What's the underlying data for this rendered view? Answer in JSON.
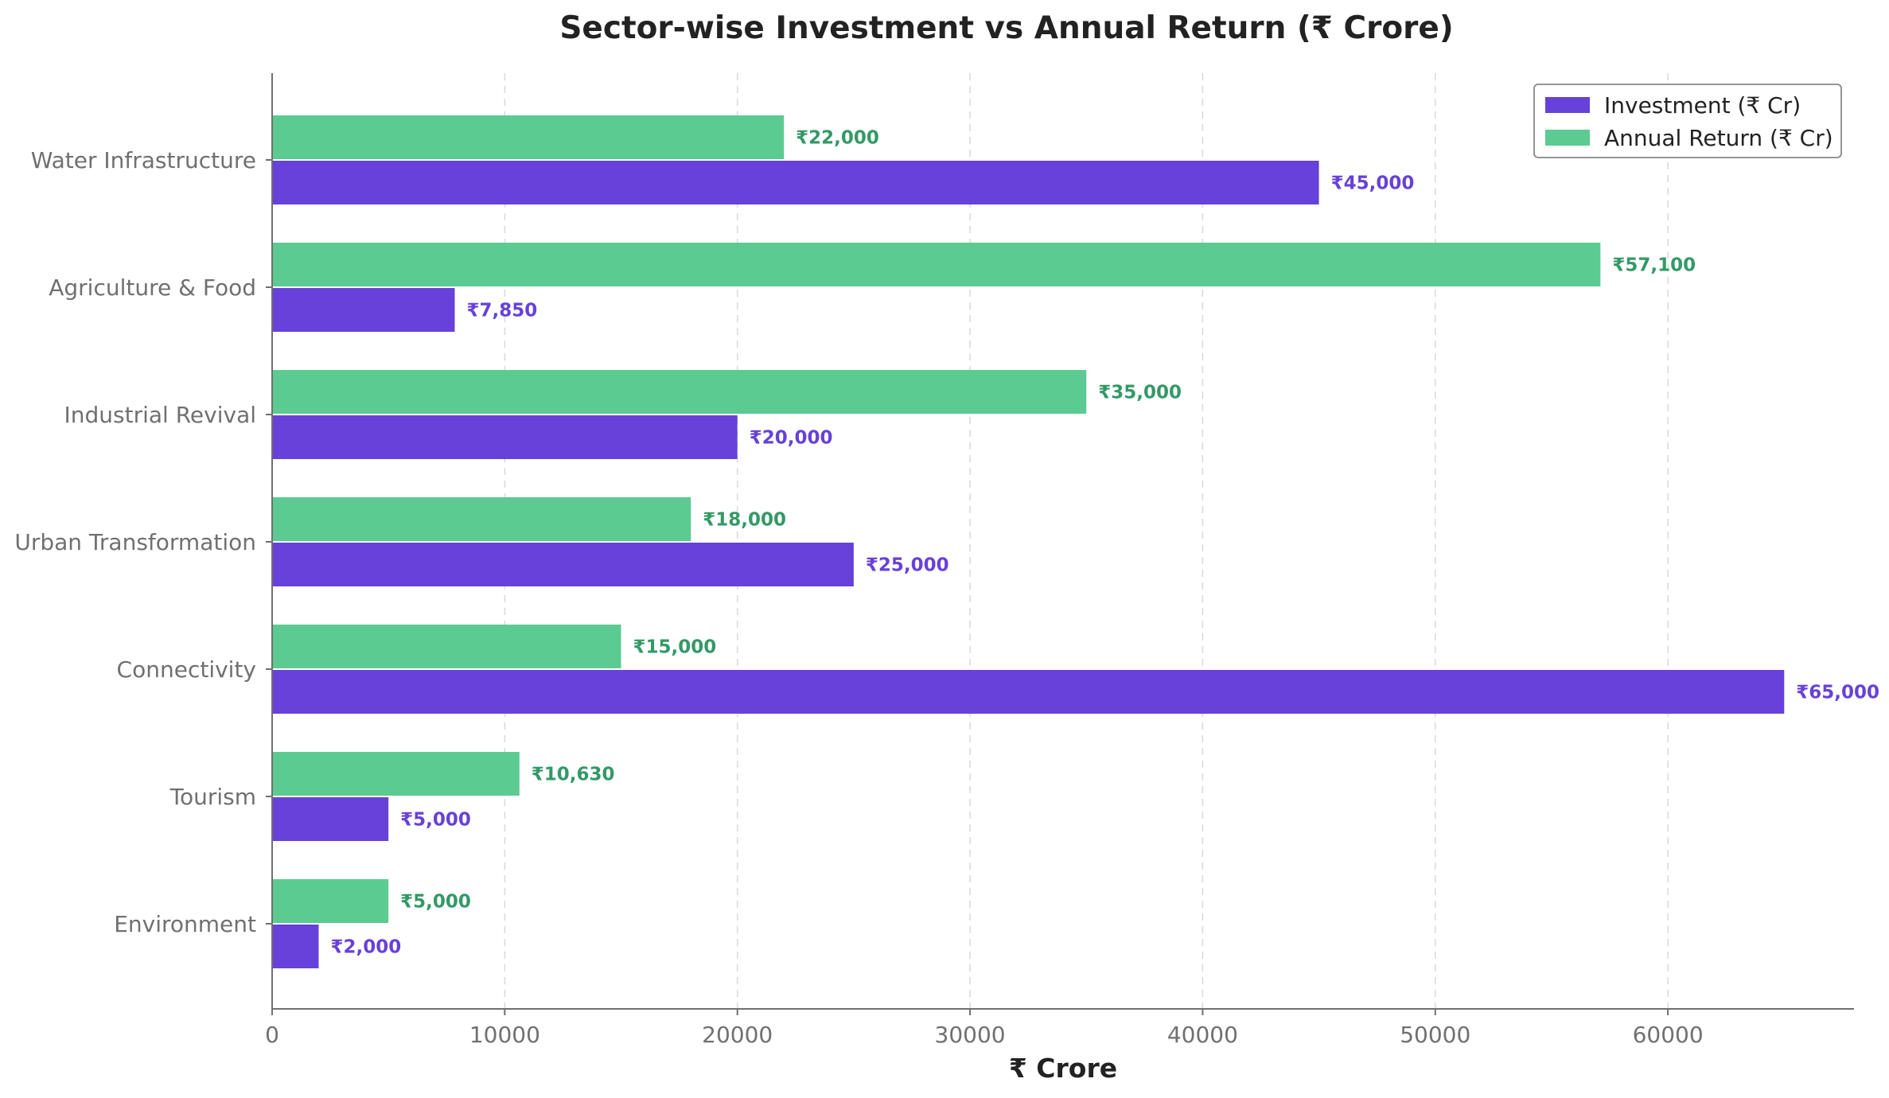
{
  "chart_data": {
    "type": "bar",
    "orientation": "horizontal",
    "title": "Sector-wise Investment vs Annual Return (₹ Crore)",
    "xlabel": "₹ Crore",
    "ylabel": "",
    "xlim": [
      0,
      68000
    ],
    "xticks": [
      0,
      10000,
      20000,
      30000,
      40000,
      50000,
      60000
    ],
    "grid": "vertical-dashed",
    "legend_position": "top-right",
    "categories": [
      "Water Infrastructure",
      "Agriculture & Food",
      "Industrial Revival",
      "Urban Transformation",
      "Connectivity",
      "Tourism",
      "Environment"
    ],
    "series": [
      {
        "name": "Investment (₹ Cr)",
        "color": "#6741d9",
        "label_color": "#6741d9",
        "values": [
          45000,
          7850,
          20000,
          25000,
          65000,
          5000,
          2000
        ],
        "labels": [
          "₹45,000",
          "₹7,850",
          "₹20,000",
          "₹25,000",
          "₹65,000",
          "₹5,000",
          "₹2,000"
        ]
      },
      {
        "name": "Annual Return (₹ Cr)",
        "color": "#5bcb91",
        "label_color": "#339966",
        "values": [
          22000,
          57100,
          35000,
          18000,
          15000,
          10630,
          5000
        ],
        "labels": [
          "₹22,000",
          "₹57,100",
          "₹35,000",
          "₹18,000",
          "₹15,000",
          "₹10,630",
          "₹5,000"
        ]
      }
    ]
  }
}
